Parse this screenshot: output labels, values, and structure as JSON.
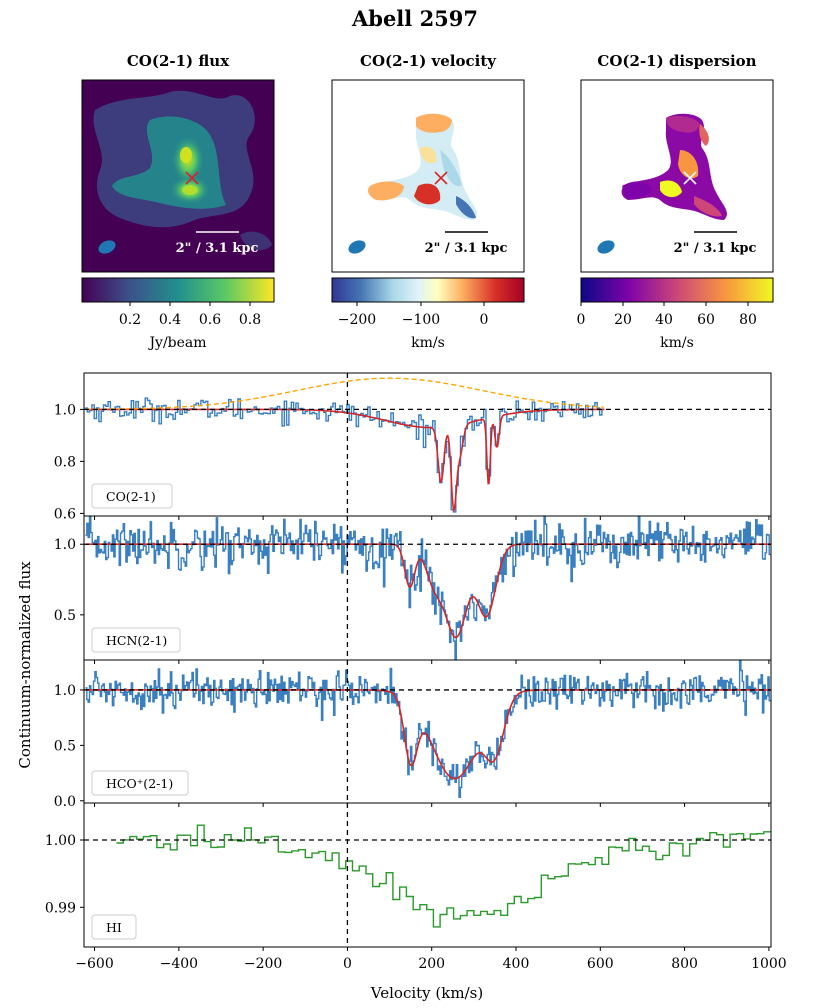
{
  "figure": {
    "title": "Abell 2597",
    "shared_ylabel": "Continuum-normalized flux",
    "shared_xlabel": "Velocity (km/s)"
  },
  "maps": [
    {
      "title": "CO(2-1) flux",
      "scalebar_label": "2\" / 3.1 kpc",
      "colorbar_label": "Jy/beam",
      "colorbar_ticks": [
        "0.2",
        "0.4",
        "0.6",
        "0.8"
      ],
      "colorbar_range": [
        0.0,
        0.9
      ],
      "colormap": "viridis",
      "marker_color": "#d62728"
    },
    {
      "title": "CO(2-1) velocity",
      "scalebar_label": "2\" / 3.1 kpc",
      "colorbar_label": "km/s",
      "colorbar_ticks": [
        "−200",
        "−100",
        "0"
      ],
      "colorbar_range": [
        -245,
        65
      ],
      "colormap": "RdYlBu_r",
      "marker_color": "#d62728"
    },
    {
      "title": "CO(2-1) dispersion",
      "scalebar_label": "2\" / 3.1 kpc",
      "colorbar_label": "km/s",
      "colorbar_ticks": [
        "0",
        "20",
        "40",
        "60",
        "80"
      ],
      "colorbar_range": [
        0,
        92
      ],
      "colormap": "plasma",
      "marker_color": "#ffffff"
    }
  ],
  "chart_data": [
    {
      "type": "line",
      "legend": "CO(2-1)",
      "xlim": [
        -625,
        1005
      ],
      "ylim": [
        0.59,
        1.14
      ],
      "yticks": [
        "0.6",
        "0.8",
        "1.0"
      ],
      "colors": {
        "data": "#3a7fbf",
        "model": "#d62728",
        "gaussian": "#ffa500"
      },
      "data_x_range": [
        -620,
        610
      ],
      "model": {
        "baseline": 1.0,
        "components": [
          {
            "center": 200,
            "depth": 0.07,
            "sigma": 110
          },
          {
            "center": 222,
            "depth": 0.21,
            "sigma": 7
          },
          {
            "center": 252,
            "depth": 0.3,
            "sigma": 6
          },
          {
            "center": 266,
            "depth": 0.12,
            "sigma": 8
          },
          {
            "center": 335,
            "depth": 0.26,
            "sigma": 4
          },
          {
            "center": 355,
            "depth": 0.12,
            "sigma": 5
          }
        ]
      },
      "gaussian_overlay": {
        "center": 100,
        "amplitude": 0.12,
        "sigma": 220,
        "x_range": [
          -620,
          610
        ]
      }
    },
    {
      "type": "line",
      "legend": "HCN(2-1)",
      "xlim": [
        -625,
        1005
      ],
      "ylim": [
        0.18,
        1.2
      ],
      "yticks": [
        "0.5",
        "1.0"
      ],
      "data_x_range": [
        -620,
        1005
      ],
      "model": {
        "baseline": 1.0,
        "components": [
          {
            "center": 148,
            "depth": 0.3,
            "sigma": 12
          },
          {
            "center": 205,
            "depth": 0.25,
            "sigma": 20
          },
          {
            "center": 258,
            "depth": 0.65,
            "sigma": 26
          },
          {
            "center": 330,
            "depth": 0.5,
            "sigma": 22
          }
        ]
      }
    },
    {
      "type": "line",
      "legend": "HCO⁺(2-1)",
      "xlim": [
        -625,
        1005
      ],
      "ylim": [
        -0.02,
        1.27
      ],
      "yticks": [
        "0.0",
        "0.5",
        "1.0"
      ],
      "data_x_range": [
        -620,
        1005
      ],
      "model": {
        "baseline": 1.0,
        "components": [
          {
            "center": 150,
            "depth": 0.55,
            "sigma": 15
          },
          {
            "center": 255,
            "depth": 0.8,
            "sigma": 55
          },
          {
            "center": 350,
            "depth": 0.45,
            "sigma": 22
          }
        ]
      }
    },
    {
      "type": "line",
      "legend": "HI",
      "xlim": [
        -625,
        1005
      ],
      "ylim": [
        0.9841,
        1.0055
      ],
      "yticks": [
        "0.99",
        "1.00"
      ],
      "colors": {
        "data": "#2a9a2a"
      },
      "data_x_range": [
        -540,
        1005
      ]
    }
  ]
}
